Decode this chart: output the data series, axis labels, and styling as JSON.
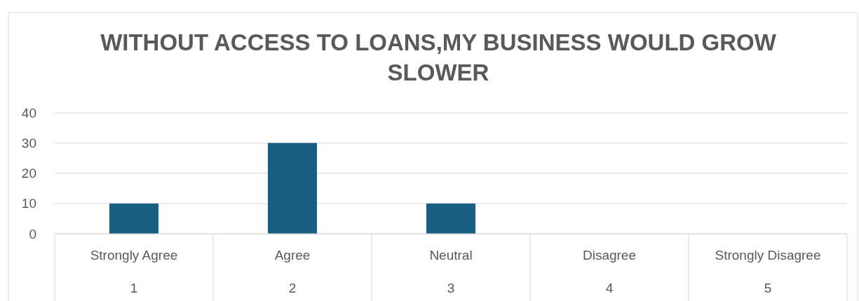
{
  "chart_data": {
    "type": "bar",
    "title": "WITHOUT ACCESS TO LOANS,MY BUSINESS WOULD GROW SLOWER",
    "categories": [
      "Strongly Agree\n1",
      "Agree\n2",
      "Neutral\n3",
      "Disagree\n4",
      "Strongly Disagree\n5"
    ],
    "values": [
      10,
      30,
      10,
      0,
      0
    ],
    "color": "#185f82",
    "ylim": [
      0,
      40
    ],
    "yticks": [
      0,
      10,
      20,
      30,
      40
    ],
    "grid": "y"
  }
}
